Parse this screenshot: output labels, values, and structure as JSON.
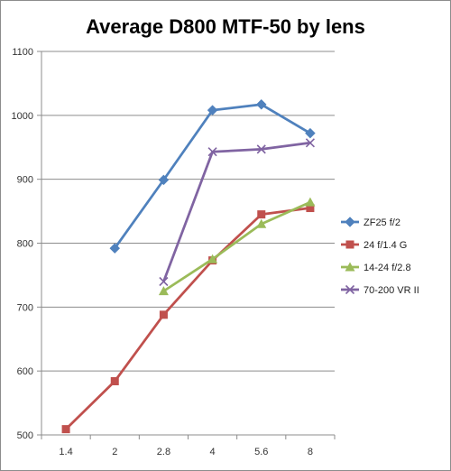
{
  "chart_data": {
    "type": "line",
    "title": "Average D800 MTF-50 by lens",
    "categories": [
      "1.4",
      "2",
      "2.8",
      "4",
      "5.6",
      "8"
    ],
    "ylim": [
      500,
      1100
    ],
    "yticks": [
      500,
      600,
      700,
      800,
      900,
      1000,
      1100
    ],
    "grid": "horizontal",
    "legend_position": "right",
    "series": [
      {
        "name": "ZF25 f/2",
        "color": "#4f81bd",
        "marker": "diamond",
        "values": [
          null,
          792,
          899,
          1008,
          1017,
          972
        ]
      },
      {
        "name": "24 f/1.4 G",
        "color": "#c0504d",
        "marker": "square",
        "values": [
          509,
          584,
          688,
          773,
          845,
          855
        ]
      },
      {
        "name": "14-24 f/2.8",
        "color": "#9bbb59",
        "marker": "triangle",
        "values": [
          null,
          null,
          725,
          775,
          830,
          864
        ]
      },
      {
        "name": "70-200 VR II",
        "color": "#8064a2",
        "marker": "x",
        "values": [
          null,
          null,
          740,
          943,
          947,
          957
        ]
      }
    ]
  }
}
